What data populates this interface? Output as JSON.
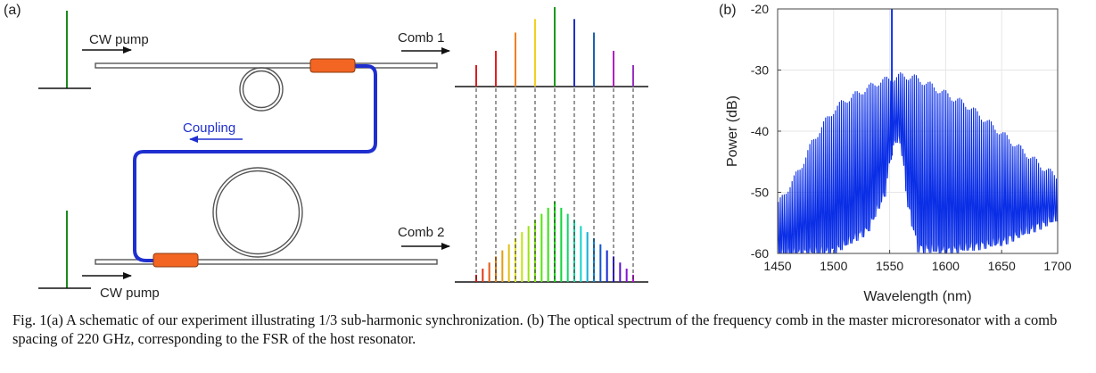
{
  "panel_a": {
    "label": "(a)",
    "cw_pump_top": "CW pump",
    "cw_pump_bottom": "CW pump",
    "comb1": "Comb 1",
    "comb2": "Comb 2",
    "coupling": "Coupling",
    "colors": {
      "waveguide": "#555555",
      "coupler": "#f26522",
      "coupling_fiber": "#1f2fcf",
      "pump_line": "#1a8a1a"
    },
    "comb1_lines": [
      {
        "rel": 0.27,
        "color": "#d61f1f"
      },
      {
        "rel": 0.45,
        "color": "#e02020"
      },
      {
        "rel": 0.68,
        "color": "#f08020"
      },
      {
        "rel": 0.85,
        "color": "#f2d020"
      },
      {
        "rel": 1.0,
        "color": "#1a9a1a"
      },
      {
        "rel": 0.85,
        "color": "#2030c0"
      },
      {
        "rel": 0.68,
        "color": "#2060b0"
      },
      {
        "rel": 0.45,
        "color": "#b020c0"
      },
      {
        "rel": 0.27,
        "color": "#9a30c0"
      }
    ]
  },
  "chart_data": {
    "type": "line",
    "panel_label": "(b)",
    "xlabel": "Wavelength (nm)",
    "ylabel": "Power (dB)",
    "xlim": [
      1450,
      1700
    ],
    "ylim": [
      -60,
      -20
    ],
    "xticks": [
      "1450",
      "1500",
      "1550",
      "1600",
      "1650",
      "1700"
    ],
    "yticks": [
      "-20",
      "-30",
      "-40",
      "-50",
      "-60"
    ],
    "series": [
      {
        "color": "#0a2ee6",
        "comb_spacing_nm": 1.76,
        "pump_wavelength_nm": 1552,
        "pump_power_db": -20,
        "envelope": [
          [
            1450,
            -52
          ],
          [
            1460,
            -49
          ],
          [
            1470,
            -46
          ],
          [
            1480,
            -42
          ],
          [
            1490,
            -39
          ],
          [
            1500,
            -36.5
          ],
          [
            1510,
            -35
          ],
          [
            1520,
            -34
          ],
          [
            1530,
            -33
          ],
          [
            1540,
            -32
          ],
          [
            1550,
            -31.5
          ],
          [
            1560,
            -31
          ],
          [
            1570,
            -31.2
          ],
          [
            1580,
            -32
          ],
          [
            1590,
            -33
          ],
          [
            1600,
            -34
          ],
          [
            1610,
            -35
          ],
          [
            1620,
            -36
          ],
          [
            1630,
            -37.5
          ],
          [
            1640,
            -39
          ],
          [
            1650,
            -40.5
          ],
          [
            1660,
            -42
          ],
          [
            1670,
            -43.5
          ],
          [
            1680,
            -45
          ],
          [
            1690,
            -46.5
          ],
          [
            1700,
            -47.5
          ]
        ],
        "floor": [
          [
            1450,
            -60
          ],
          [
            1500,
            -59.5
          ],
          [
            1530,
            -56
          ],
          [
            1545,
            -50
          ],
          [
            1550,
            -44
          ],
          [
            1555,
            -41
          ],
          [
            1560,
            -42
          ],
          [
            1566,
            -52
          ],
          [
            1575,
            -59
          ],
          [
            1600,
            -59.5
          ],
          [
            1650,
            -58
          ],
          [
            1700,
            -54
          ]
        ]
      }
    ]
  },
  "caption": {
    "text": "Fig. 1(a) A schematic of our experiment illustrating 1/3 sub-harmonic synchronization. (b) The optical spectrum of the frequency comb in the master microresonator with a comb spacing of 220 GHz, corresponding to the FSR of the host resonator."
  }
}
